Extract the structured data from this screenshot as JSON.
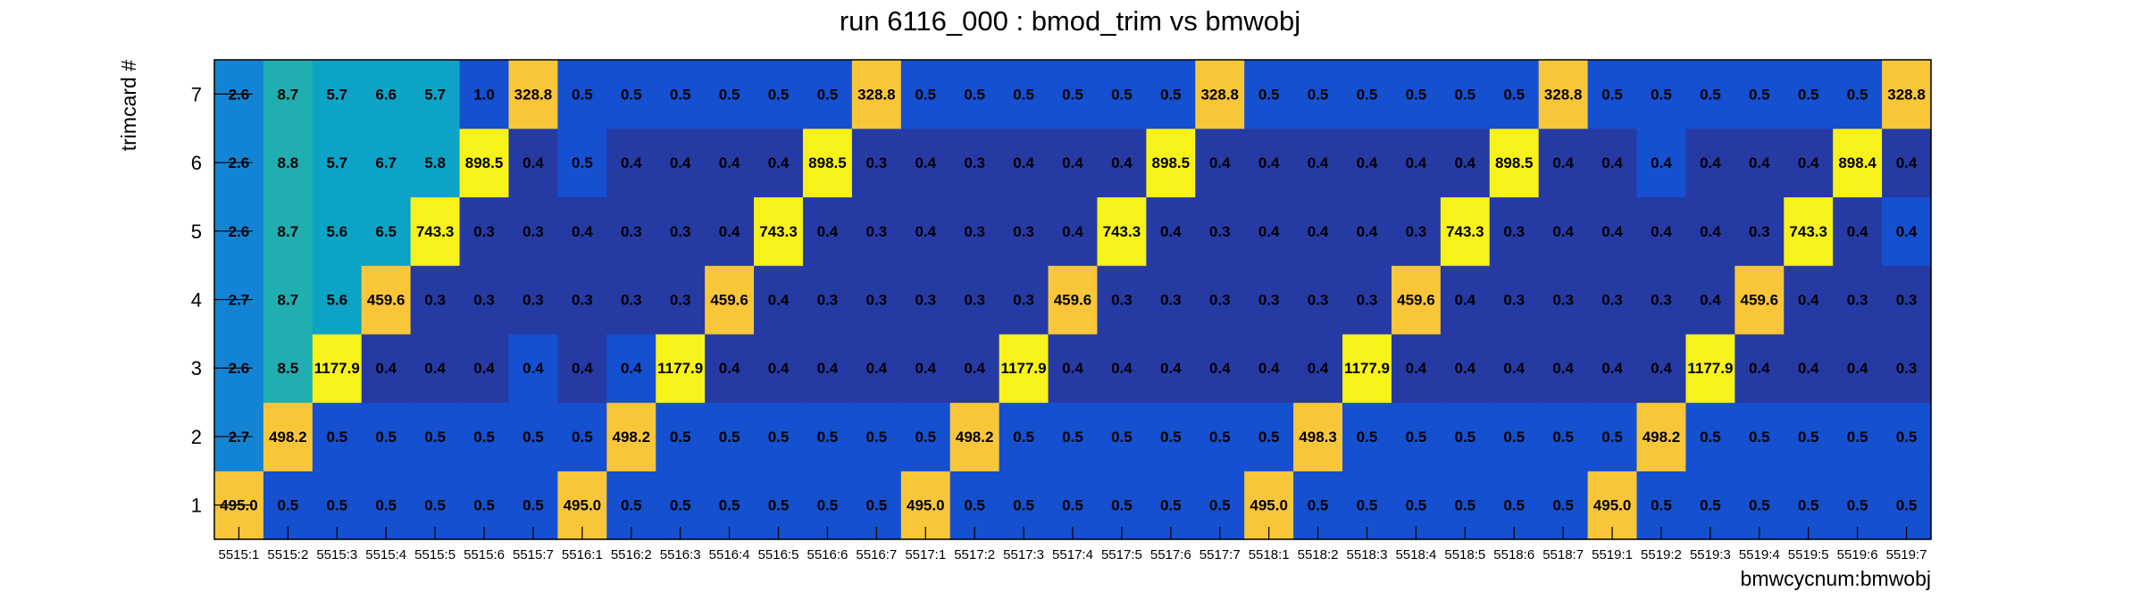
{
  "chart_data": {
    "type": "heatmap",
    "title": "run 6116_000 : bmod_trim vs bmwobj",
    "xlabel": "bmwcycnum:bmwobj",
    "ylabel": "trimcard #",
    "x_categories": [
      "5515:1",
      "5515:2",
      "5515:3",
      "5515:4",
      "5515:5",
      "5515:6",
      "5515:7",
      "5516:1",
      "5516:2",
      "5516:3",
      "5516:4",
      "5516:5",
      "5516:6",
      "5516:7",
      "5517:1",
      "5517:2",
      "5517:3",
      "5517:4",
      "5517:5",
      "5517:6",
      "5517:7",
      "5518:1",
      "5518:2",
      "5518:3",
      "5518:4",
      "5518:5",
      "5518:6",
      "5518:7",
      "5519:1",
      "5519:2",
      "5519:3",
      "5519:4",
      "5519:5",
      "5519:6",
      "5519:7"
    ],
    "y_categories": [
      "1",
      "2",
      "3",
      "4",
      "5",
      "6",
      "7"
    ],
    "values": [
      [
        "495.0",
        "0.5",
        "0.5",
        "0.5",
        "0.5",
        "0.5",
        "0.5",
        "495.0",
        "0.5",
        "0.5",
        "0.5",
        "0.5",
        "0.5",
        "0.5",
        "495.0",
        "0.5",
        "0.5",
        "0.5",
        "0.5",
        "0.5",
        "0.5",
        "495.0",
        "0.5",
        "0.5",
        "0.5",
        "0.5",
        "0.5",
        "0.5",
        "495.0",
        "0.5",
        "0.5",
        "0.5",
        "0.5",
        "0.5",
        "0.5"
      ],
      [
        "2.7",
        "498.2",
        "0.5",
        "0.5",
        "0.5",
        "0.5",
        "0.5",
        "0.5",
        "498.2",
        "0.5",
        "0.5",
        "0.5",
        "0.5",
        "0.5",
        "0.5",
        "498.2",
        "0.5",
        "0.5",
        "0.5",
        "0.5",
        "0.5",
        "0.5",
        "498.3",
        "0.5",
        "0.5",
        "0.5",
        "0.5",
        "0.5",
        "0.5",
        "498.2",
        "0.5",
        "0.5",
        "0.5",
        "0.5",
        "0.5"
      ],
      [
        "2.6",
        "8.5",
        "1177.9",
        "0.4",
        "0.4",
        "0.4",
        "0.4",
        "0.4",
        "0.4",
        "1177.9",
        "0.4",
        "0.4",
        "0.4",
        "0.4",
        "0.4",
        "0.4",
        "1177.9",
        "0.4",
        "0.4",
        "0.4",
        "0.4",
        "0.4",
        "0.4",
        "1177.9",
        "0.4",
        "0.4",
        "0.4",
        "0.4",
        "0.4",
        "0.4",
        "1177.9",
        "0.4",
        "0.4",
        "0.4",
        "0.3"
      ],
      [
        "2.7",
        "8.7",
        "5.6",
        "459.6",
        "0.3",
        "0.3",
        "0.3",
        "0.3",
        "0.3",
        "0.3",
        "459.6",
        "0.4",
        "0.3",
        "0.3",
        "0.3",
        "0.3",
        "0.3",
        "459.6",
        "0.3",
        "0.3",
        "0.3",
        "0.3",
        "0.3",
        "0.3",
        "459.6",
        "0.4",
        "0.3",
        "0.3",
        "0.3",
        "0.3",
        "0.4",
        "459.6",
        "0.4",
        "0.3",
        "0.3"
      ],
      [
        "2.6",
        "8.7",
        "5.6",
        "6.5",
        "743.3",
        "0.3",
        "0.3",
        "0.4",
        "0.3",
        "0.3",
        "0.4",
        "743.3",
        "0.4",
        "0.3",
        "0.4",
        "0.3",
        "0.3",
        "0.4",
        "743.3",
        "0.4",
        "0.3",
        "0.4",
        "0.4",
        "0.4",
        "0.3",
        "743.3",
        "0.3",
        "0.4",
        "0.4",
        "0.4",
        "0.4",
        "0.3",
        "743.3",
        "0.4",
        "0.4"
      ],
      [
        "2.6",
        "8.8",
        "5.7",
        "6.7",
        "5.8",
        "898.5",
        "0.4",
        "0.5",
        "0.4",
        "0.4",
        "0.4",
        "0.4",
        "898.5",
        "0.3",
        "0.4",
        "0.3",
        "0.4",
        "0.4",
        "0.4",
        "898.5",
        "0.4",
        "0.4",
        "0.4",
        "0.4",
        "0.4",
        "0.4",
        "898.5",
        "0.4",
        "0.4",
        "0.4",
        "0.4",
        "0.4",
        "0.4",
        "898.4",
        "0.4"
      ],
      [
        "2.6",
        "8.7",
        "5.7",
        "6.6",
        "5.7",
        "1.0",
        "328.8",
        "0.5",
        "0.5",
        "0.5",
        "0.5",
        "0.5",
        "0.5",
        "328.8",
        "0.5",
        "0.5",
        "0.5",
        "0.5",
        "0.5",
        "0.5",
        "328.8",
        "0.5",
        "0.5",
        "0.5",
        "0.5",
        "0.5",
        "0.5",
        "328.8",
        "0.5",
        "0.5",
        "0.5",
        "0.5",
        "0.5",
        "0.5",
        "328.8"
      ]
    ],
    "colors": {
      "dark_blue": "#263aa4",
      "blue": "#1450cf",
      "steel_blue": "#1384d3",
      "teal": "#21aeb0",
      "cyan": "#0ca3c6",
      "orange": "#f9c63a",
      "yellow": "#f7f21a"
    },
    "cell_colors": [
      [
        "orange",
        "blue",
        "blue",
        "blue",
        "blue",
        "blue",
        "blue",
        "orange",
        "blue",
        "blue",
        "blue",
        "blue",
        "blue",
        "blue",
        "orange",
        "blue",
        "blue",
        "blue",
        "blue",
        "blue",
        "blue",
        "orange",
        "blue",
        "blue",
        "blue",
        "blue",
        "blue",
        "blue",
        "orange",
        "blue",
        "blue",
        "blue",
        "blue",
        "blue",
        "blue"
      ],
      [
        "steel_blue",
        "orange",
        "blue",
        "blue",
        "blue",
        "blue",
        "blue",
        "blue",
        "orange",
        "blue",
        "blue",
        "blue",
        "blue",
        "blue",
        "blue",
        "orange",
        "blue",
        "blue",
        "blue",
        "blue",
        "blue",
        "blue",
        "orange",
        "blue",
        "blue",
        "blue",
        "blue",
        "blue",
        "blue",
        "orange",
        "blue",
        "blue",
        "blue",
        "blue",
        "blue"
      ],
      [
        "steel_blue",
        "teal",
        "yellow",
        "dark_blue",
        "dark_blue",
        "dark_blue",
        "blue",
        "dark_blue",
        "blue",
        "yellow",
        "dark_blue",
        "dark_blue",
        "dark_blue",
        "dark_blue",
        "dark_blue",
        "dark_blue",
        "yellow",
        "dark_blue",
        "dark_blue",
        "dark_blue",
        "dark_blue",
        "dark_blue",
        "dark_blue",
        "yellow",
        "dark_blue",
        "dark_blue",
        "dark_blue",
        "dark_blue",
        "dark_blue",
        "dark_blue",
        "yellow",
        "dark_blue",
        "dark_blue",
        "dark_blue",
        "dark_blue"
      ],
      [
        "steel_blue",
        "teal",
        "cyan",
        "orange",
        "dark_blue",
        "dark_blue",
        "dark_blue",
        "dark_blue",
        "dark_blue",
        "dark_blue",
        "orange",
        "dark_blue",
        "dark_blue",
        "dark_blue",
        "dark_blue",
        "dark_blue",
        "dark_blue",
        "orange",
        "dark_blue",
        "dark_blue",
        "dark_blue",
        "dark_blue",
        "dark_blue",
        "dark_blue",
        "orange",
        "dark_blue",
        "dark_blue",
        "dark_blue",
        "dark_blue",
        "dark_blue",
        "dark_blue",
        "orange",
        "dark_blue",
        "dark_blue",
        "dark_blue"
      ],
      [
        "steel_blue",
        "teal",
        "cyan",
        "cyan",
        "yellow",
        "dark_blue",
        "dark_blue",
        "dark_blue",
        "dark_blue",
        "dark_blue",
        "dark_blue",
        "yellow",
        "dark_blue",
        "dark_blue",
        "dark_blue",
        "dark_blue",
        "dark_blue",
        "dark_blue",
        "yellow",
        "dark_blue",
        "dark_blue",
        "dark_blue",
        "dark_blue",
        "dark_blue",
        "dark_blue",
        "yellow",
        "dark_blue",
        "dark_blue",
        "dark_blue",
        "dark_blue",
        "dark_blue",
        "dark_blue",
        "yellow",
        "dark_blue",
        "blue"
      ],
      [
        "steel_blue",
        "teal",
        "cyan",
        "cyan",
        "cyan",
        "yellow",
        "dark_blue",
        "blue",
        "dark_blue",
        "dark_blue",
        "dark_blue",
        "dark_blue",
        "yellow",
        "dark_blue",
        "dark_blue",
        "dark_blue",
        "dark_blue",
        "dark_blue",
        "dark_blue",
        "yellow",
        "dark_blue",
        "dark_blue",
        "dark_blue",
        "dark_blue",
        "dark_blue",
        "dark_blue",
        "yellow",
        "dark_blue",
        "dark_blue",
        "blue",
        "dark_blue",
        "dark_blue",
        "dark_blue",
        "yellow",
        "dark_blue"
      ],
      [
        "steel_blue",
        "teal",
        "cyan",
        "cyan",
        "cyan",
        "blue",
        "orange",
        "blue",
        "blue",
        "blue",
        "blue",
        "blue",
        "blue",
        "orange",
        "blue",
        "blue",
        "blue",
        "blue",
        "blue",
        "blue",
        "orange",
        "blue",
        "blue",
        "blue",
        "blue",
        "blue",
        "blue",
        "orange",
        "blue",
        "blue",
        "blue",
        "blue",
        "blue",
        "blue",
        "orange"
      ]
    ],
    "grid": false,
    "legend": "none"
  }
}
